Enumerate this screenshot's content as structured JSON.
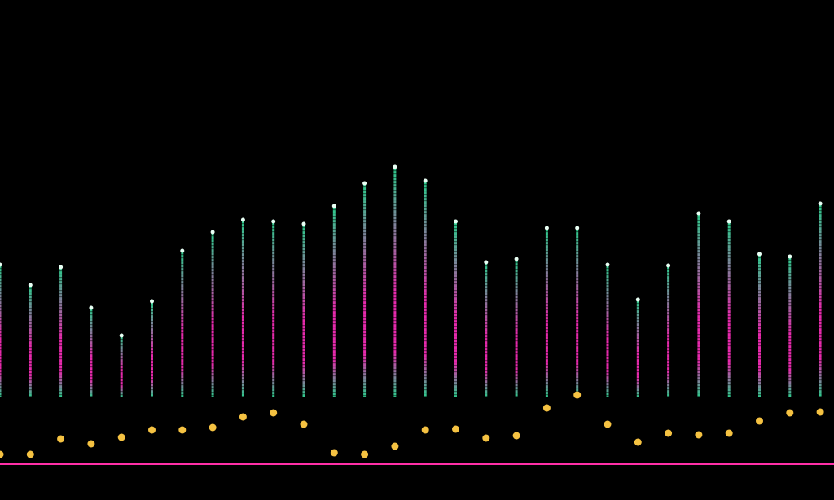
{
  "chart_data": {
    "type": "column-lines",
    "categories": [
      null,
      null,
      null,
      null,
      null,
      null,
      null,
      null,
      null,
      null,
      null,
      null,
      null,
      null,
      null,
      null,
      null,
      null,
      null,
      null,
      null,
      null,
      null,
      null,
      null,
      null,
      null,
      null
    ],
    "series": [
      {
        "color": "#2fe39b",
        "values": [
          289,
          264,
          286,
          236,
          202,
          244,
          306,
          329,
          344,
          342,
          339,
          361,
          389,
          409,
          392,
          342,
          292,
          296,
          334,
          334,
          289,
          246,
          288,
          352,
          342,
          302,
          299,
          364
        ]
      },
      {
        "color": "#ff2fbf",
        "values": [
          126,
          126,
          126,
          126,
          126,
          126,
          126,
          126,
          126,
          126,
          126,
          126,
          126,
          126,
          126,
          126,
          126,
          126,
          126,
          126,
          126,
          126,
          126,
          126,
          126,
          126,
          126,
          126
        ]
      },
      {
        "color": "#f5c242",
        "values": [
          56,
          56,
          75,
          69,
          77,
          86,
          86,
          89,
          102,
          107,
          93,
          58,
          56,
          66,
          86,
          87,
          76,
          79,
          113,
          129,
          93,
          71,
          82,
          80,
          82,
          97,
          107,
          108
        ]
      }
    ],
    "baseline": 44,
    "baseline_color": "#ff2fa8",
    "ylim": [
      0,
      614
    ]
  }
}
